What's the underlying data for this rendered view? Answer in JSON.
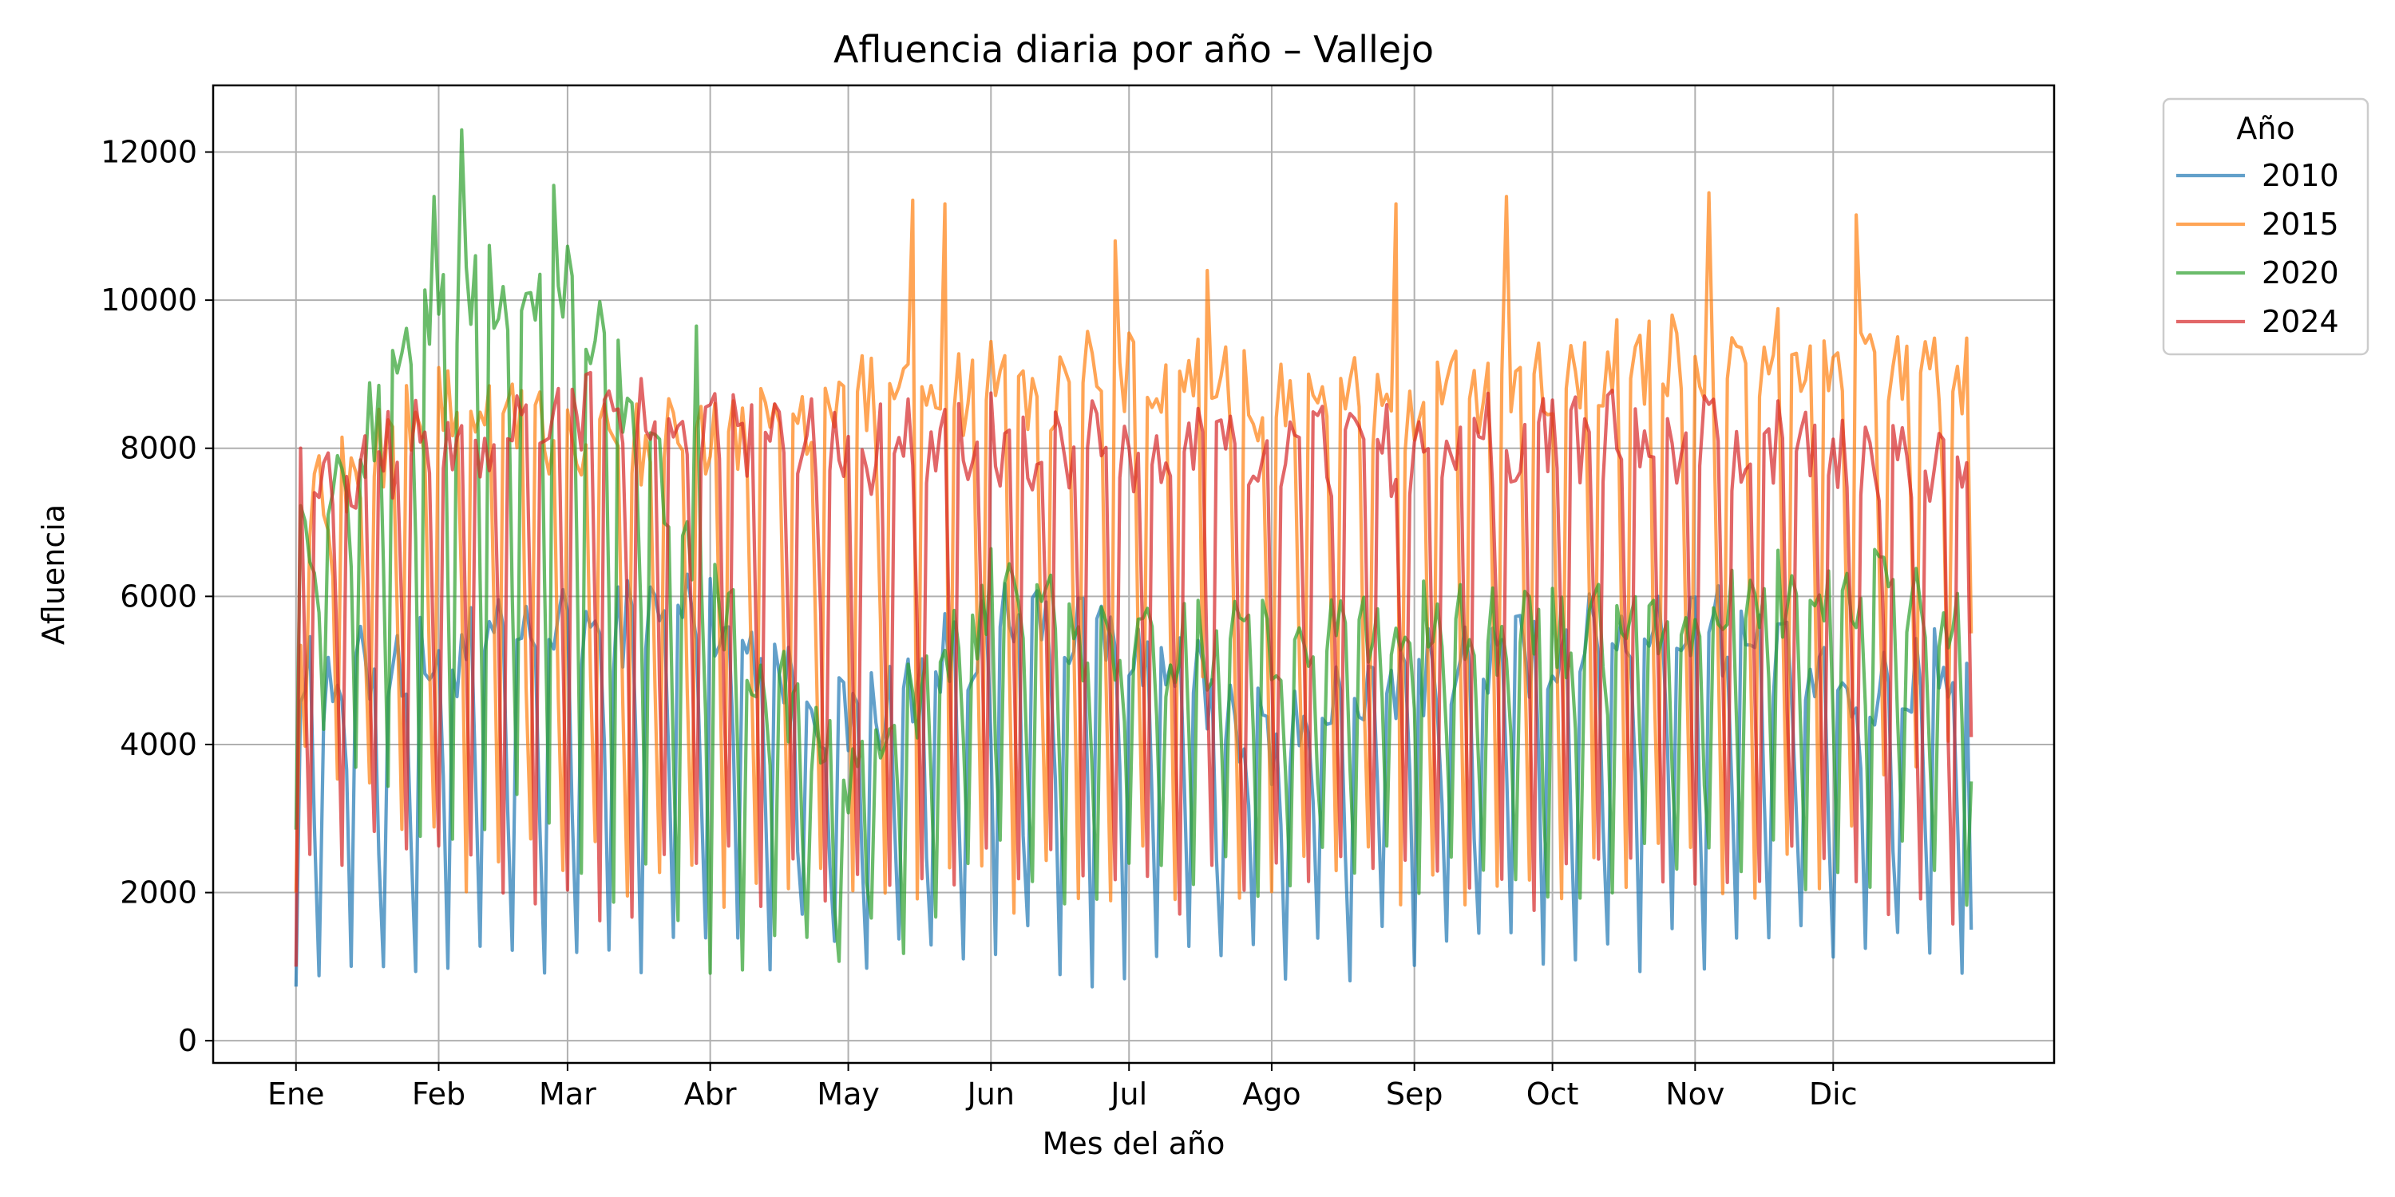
{
  "chart_data": {
    "type": "line",
    "title": "Afluencia diaria por año – Vallejo",
    "xlabel": "Mes del año",
    "ylabel": "Afluencia",
    "x_ticks": [
      "Ene",
      "Feb",
      "Mar",
      "Abr",
      "May",
      "Jun",
      "Jul",
      "Ago",
      "Sep",
      "Oct",
      "Nov",
      "Dic"
    ],
    "x_tick_days": [
      1,
      32,
      60,
      91,
      121,
      152,
      182,
      213,
      244,
      274,
      305,
      335
    ],
    "xlim": [
      -17,
      383
    ],
    "y_ticks": [
      0,
      2000,
      4000,
      6000,
      8000,
      10000,
      12000
    ],
    "ylim": [
      -300,
      12900
    ],
    "grid": true,
    "legend": {
      "title": "Año",
      "placement": "outside-top-right"
    },
    "series": [
      {
        "name": "2010",
        "color": "#1f77b4",
        "weekday": [
          4800,
          5200,
          5500,
          5900,
          4200,
          5600,
          5400,
          4100,
          5000,
          5300,
          5800,
          4600,
          5200
        ],
        "weekend": [
          1200,
          900,
          1100,
          1400,
          1300,
          1150,
          1000,
          1200,
          1100,
          1250,
          1300,
          1350,
          1000
        ],
        "first": 730,
        "last": 1500
      },
      {
        "name": "2015",
        "color": "#ff7f0e",
        "weekday": [
          7200,
          8500,
          8200,
          8000,
          8600,
          8800,
          9000,
          8700,
          8600,
          9000,
          9200,
          9400,
          9000
        ],
        "weekend": [
          4500,
          2400,
          2300,
          2000,
          2200,
          2100,
          2200,
          2000,
          2300,
          2200,
          2300,
          2400,
          4800
        ],
        "first": 2000,
        "last": 5500,
        "peaks": [
          [
            135,
            11350
          ],
          [
            142,
            11300
          ],
          [
            179,
            10800
          ],
          [
            199,
            10400
          ],
          [
            240,
            11300
          ],
          [
            264,
            11400
          ],
          [
            308,
            11450
          ],
          [
            340,
            11150
          ]
        ]
      },
      {
        "name": "2020",
        "color": "#2ca02c",
        "weekday": [
          6500,
          10000,
          10400,
          6000,
          3500,
          6000,
          5200,
          5500,
          5600,
          5500,
          5800,
          6200,
          5800
        ],
        "weekend": [
          4600,
          3000,
          2800,
          1300,
          1000,
          2400,
          2200,
          2300,
          2400,
          2300,
          2400,
          2500,
          2000
        ],
        "first": 2850,
        "last": 3500,
        "peaks": [
          [
            37,
            12300
          ],
          [
            31,
            11400
          ],
          [
            57,
            11550
          ],
          [
            88,
            9650
          ]
        ]
      },
      {
        "name": "2024",
        "color": "#d62728",
        "weekday": [
          7600,
          8100,
          8600,
          8300,
          8000,
          8100,
          8000,
          7900,
          8000,
          8200,
          8100,
          8000,
          7500
        ],
        "weekend": [
          2700,
          2400,
          1800,
          2200,
          2300,
          2200,
          2100,
          2100,
          2200,
          2200,
          2300,
          2300,
          1700
        ],
        "first": 1000,
        "last": 4100
      }
    ]
  }
}
